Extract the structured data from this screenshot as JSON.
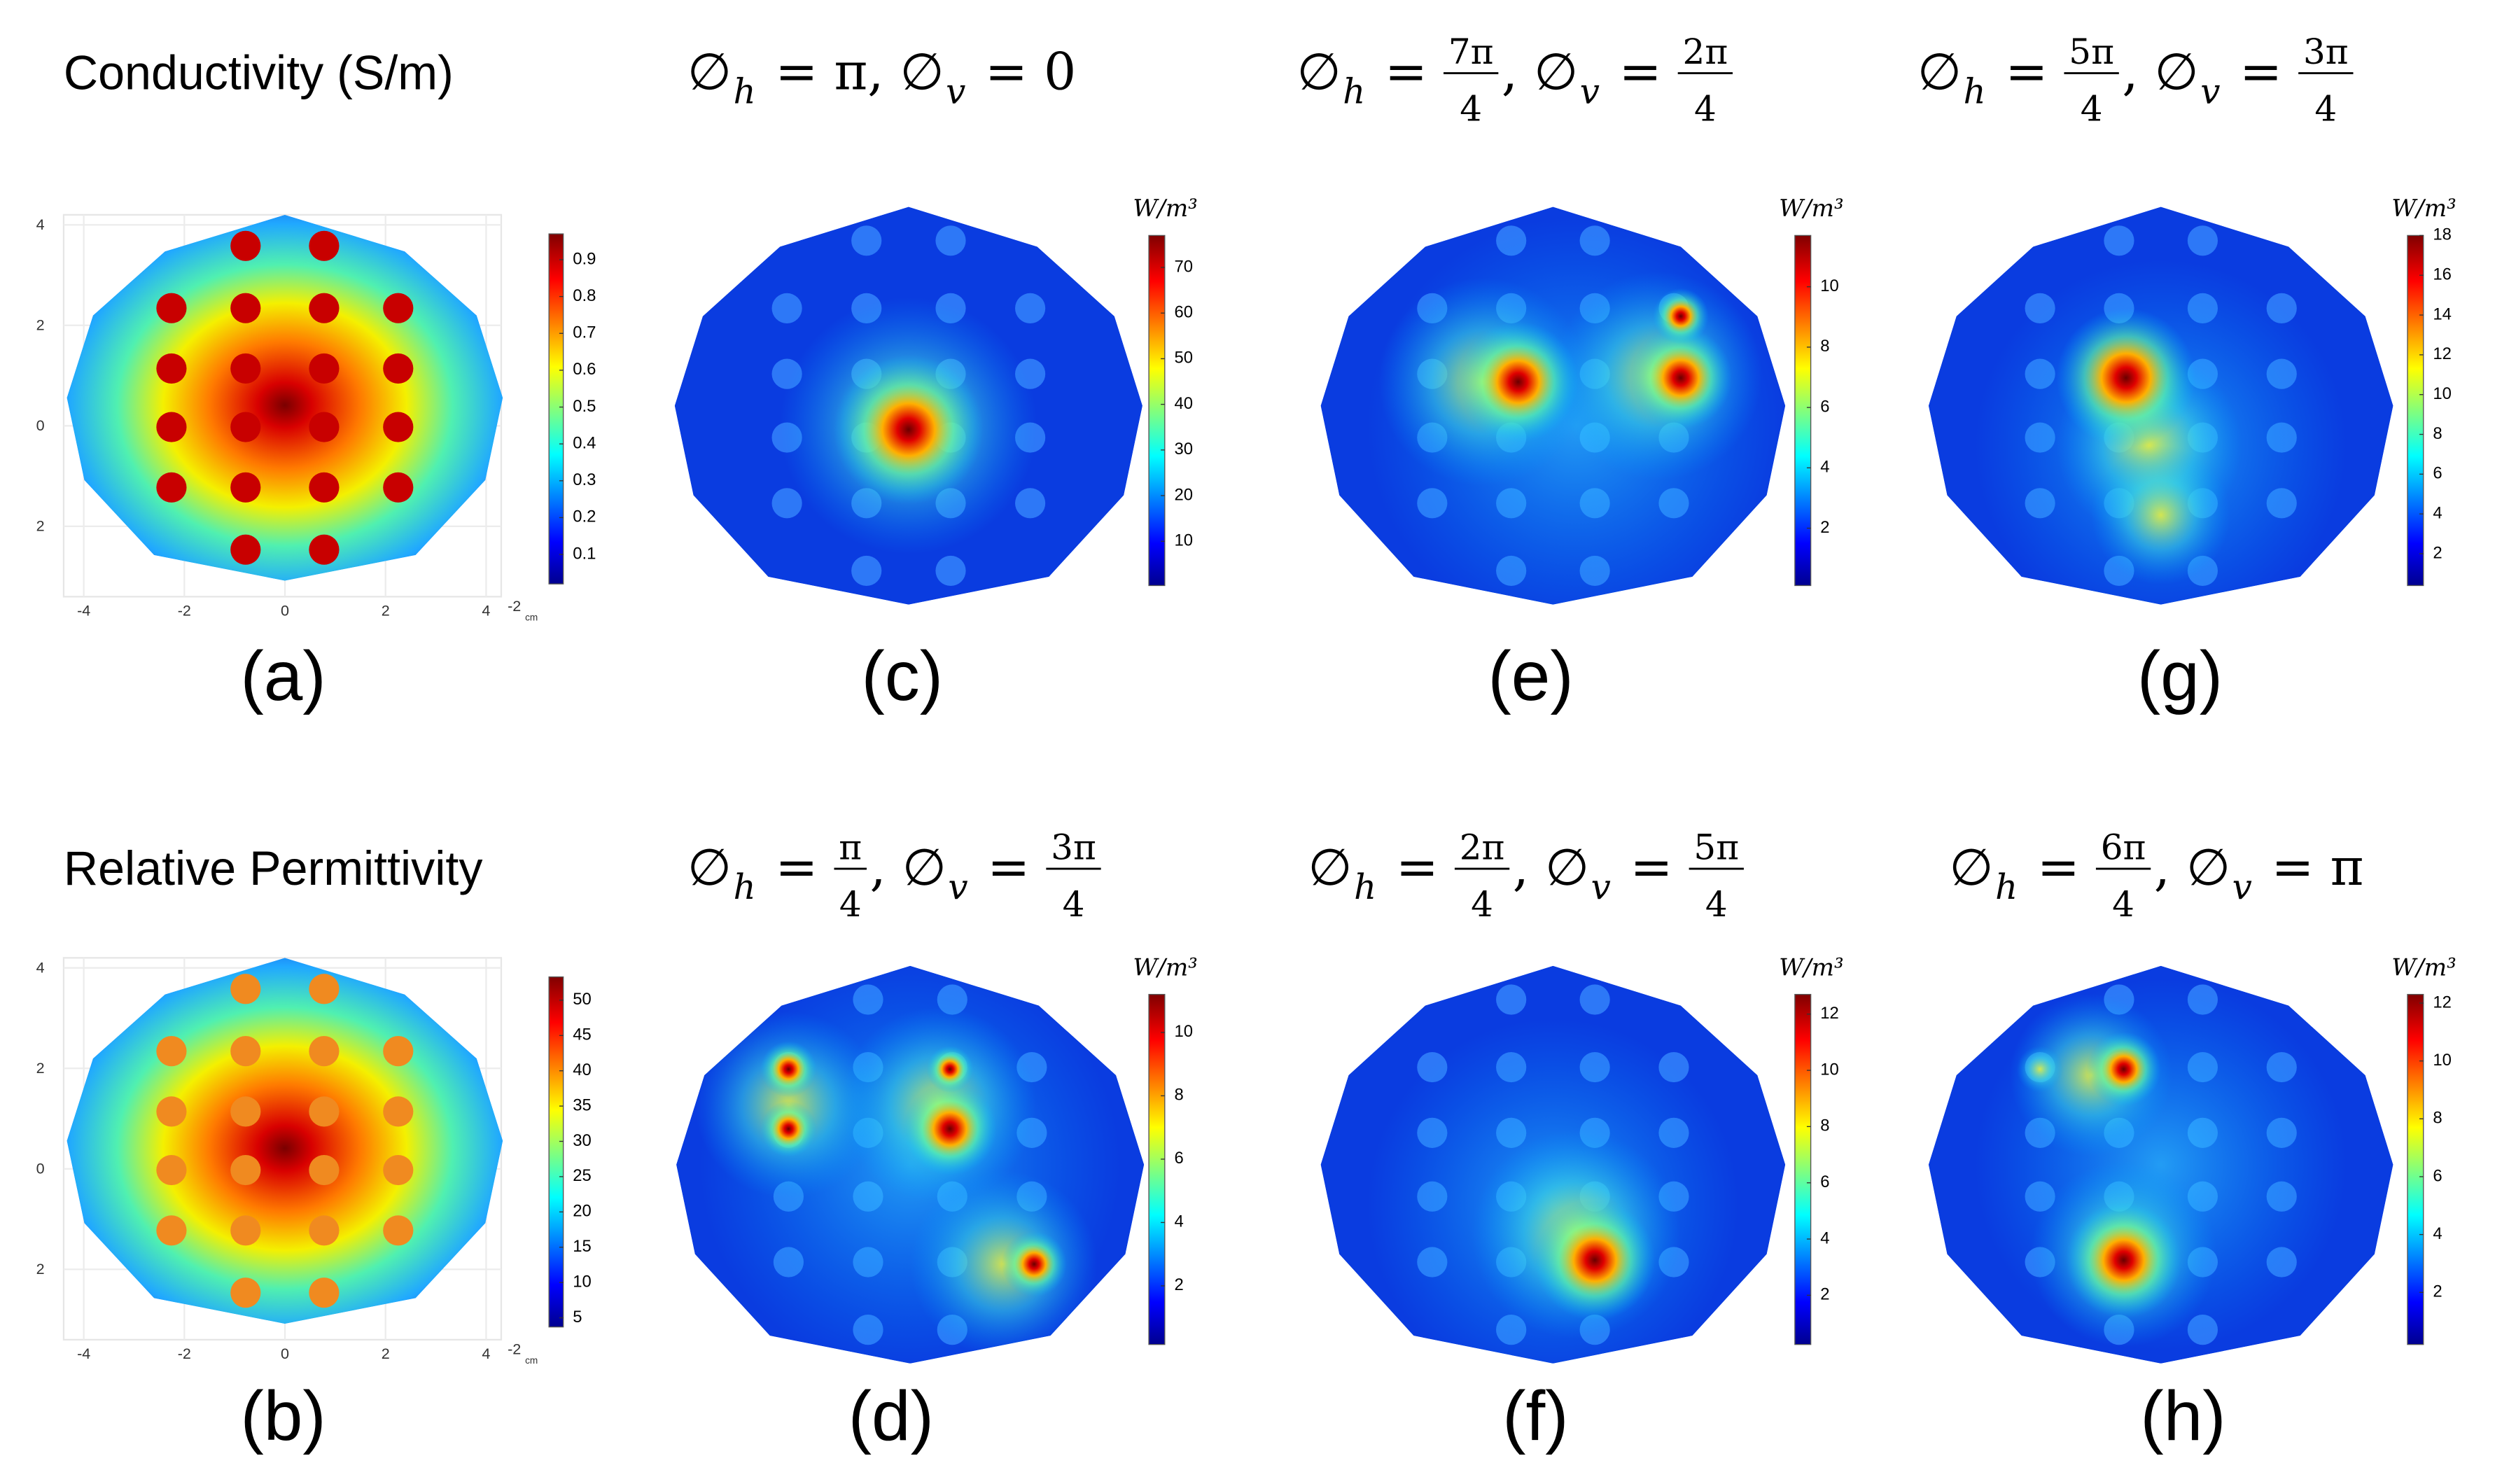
{
  "panels": [
    {
      "label": "(a)",
      "title": [
        "Conductivity (S/m)"
      ],
      "colorbar": {
        "clim": [
          0.02,
          0.97
        ],
        "ticks": [
          0.1,
          0.2,
          0.3,
          0.4,
          0.5,
          0.6,
          0.7,
          0.8,
          0.9
        ]
      },
      "axes": {
        "xlim": [
          -4.4,
          4.3
        ],
        "ylim": [
          -3.4,
          4.2
        ],
        "xticks": [
          -4,
          -2,
          0,
          2,
          4
        ],
        "yticks": [
          4,
          2,
          0,
          {
            "value": -2,
            "label": "2"
          }
        ],
        "x_unit_exponent": "-2",
        "x_unit": "cm"
      }
    },
    {
      "label": "(c)",
      "title": [
        "∅",
        {
          "sub": "h"
        },
        " = π, ∅",
        {
          "sub": "v"
        },
        " = 0"
      ],
      "colorbar": {
        "unit": "W/m³",
        "clim": [
          0.3,
          77
        ],
        "ticks": [
          10,
          20,
          30,
          40,
          50,
          60,
          70
        ]
      }
    },
    {
      "label": "(e)",
      "title": [
        "∅",
        {
          "sub": "h"
        },
        " = ",
        {
          "num": "7π",
          "den": "4"
        },
        ", ∅",
        {
          "sub": "v"
        },
        " = ",
        {
          "num": "2π",
          "den": "4"
        }
      ],
      "colorbar": {
        "unit": "W/m³",
        "clim": [
          0.1,
          11.7
        ],
        "ticks": [
          2,
          4,
          6,
          8,
          10
        ]
      }
    },
    {
      "label": "(g)",
      "title": [
        "∅",
        {
          "sub": "h"
        },
        " = ",
        {
          "num": "5π",
          "den": "4"
        },
        ", ∅",
        {
          "sub": "v"
        },
        " = ",
        {
          "num": "3π",
          "den": "4"
        }
      ],
      "colorbar": {
        "unit": "W/m³",
        "clim": [
          0.4,
          18
        ],
        "ticks": [
          2,
          4,
          6,
          8,
          10,
          12,
          14,
          16,
          18
        ]
      }
    },
    {
      "label": "(b)",
      "title": [
        "Relative Permittivity"
      ],
      "colorbar": {
        "clim": [
          3.7,
          53.3
        ],
        "ticks": [
          5,
          10,
          15,
          20,
          25,
          30,
          35,
          40,
          45,
          50
        ]
      },
      "axes": {
        "xlim": [
          -4.4,
          4.3
        ],
        "ylim": [
          -3.4,
          4.2
        ],
        "xticks": [
          -4,
          -2,
          0,
          2,
          4
        ],
        "yticks": [
          4,
          2,
          0,
          {
            "value": -2,
            "label": "2"
          }
        ],
        "x_unit_exponent": "-2",
        "x_unit": "cm"
      }
    },
    {
      "label": "(d)",
      "title": [
        "∅",
        {
          "sub": "h"
        },
        " = ",
        {
          "num": "π",
          "den": "4"
        },
        ", ∅",
        {
          "sub": "v"
        },
        " = ",
        {
          "num": "3π",
          "den": "4"
        }
      ],
      "colorbar": {
        "unit": "W/m³",
        "clim": [
          0.15,
          11.2
        ],
        "ticks": [
          2,
          4,
          6,
          8,
          10
        ]
      }
    },
    {
      "label": "(f)",
      "title": [
        "∅",
        {
          "sub": "h"
        },
        " = ",
        {
          "num": "2π",
          "den": "4"
        },
        ", ∅",
        {
          "sub": "v"
        },
        " = ",
        {
          "num": "5π",
          "den": "4"
        }
      ],
      "colorbar": {
        "unit": "W/m³",
        "clim": [
          0.25,
          12.7
        ],
        "ticks": [
          2,
          4,
          6,
          8,
          10,
          12
        ]
      }
    },
    {
      "label": "(h)",
      "title": [
        "∅",
        {
          "sub": "h"
        },
        " = ",
        {
          "num": "6π",
          "den": "4"
        },
        ", ∅",
        {
          "sub": "v"
        },
        " = π"
      ],
      "colorbar": {
        "unit": "W/m³",
        "clim": [
          0.2,
          12.3
        ],
        "ticks": [
          2,
          4,
          6,
          8,
          10,
          12
        ]
      }
    }
  ]
}
